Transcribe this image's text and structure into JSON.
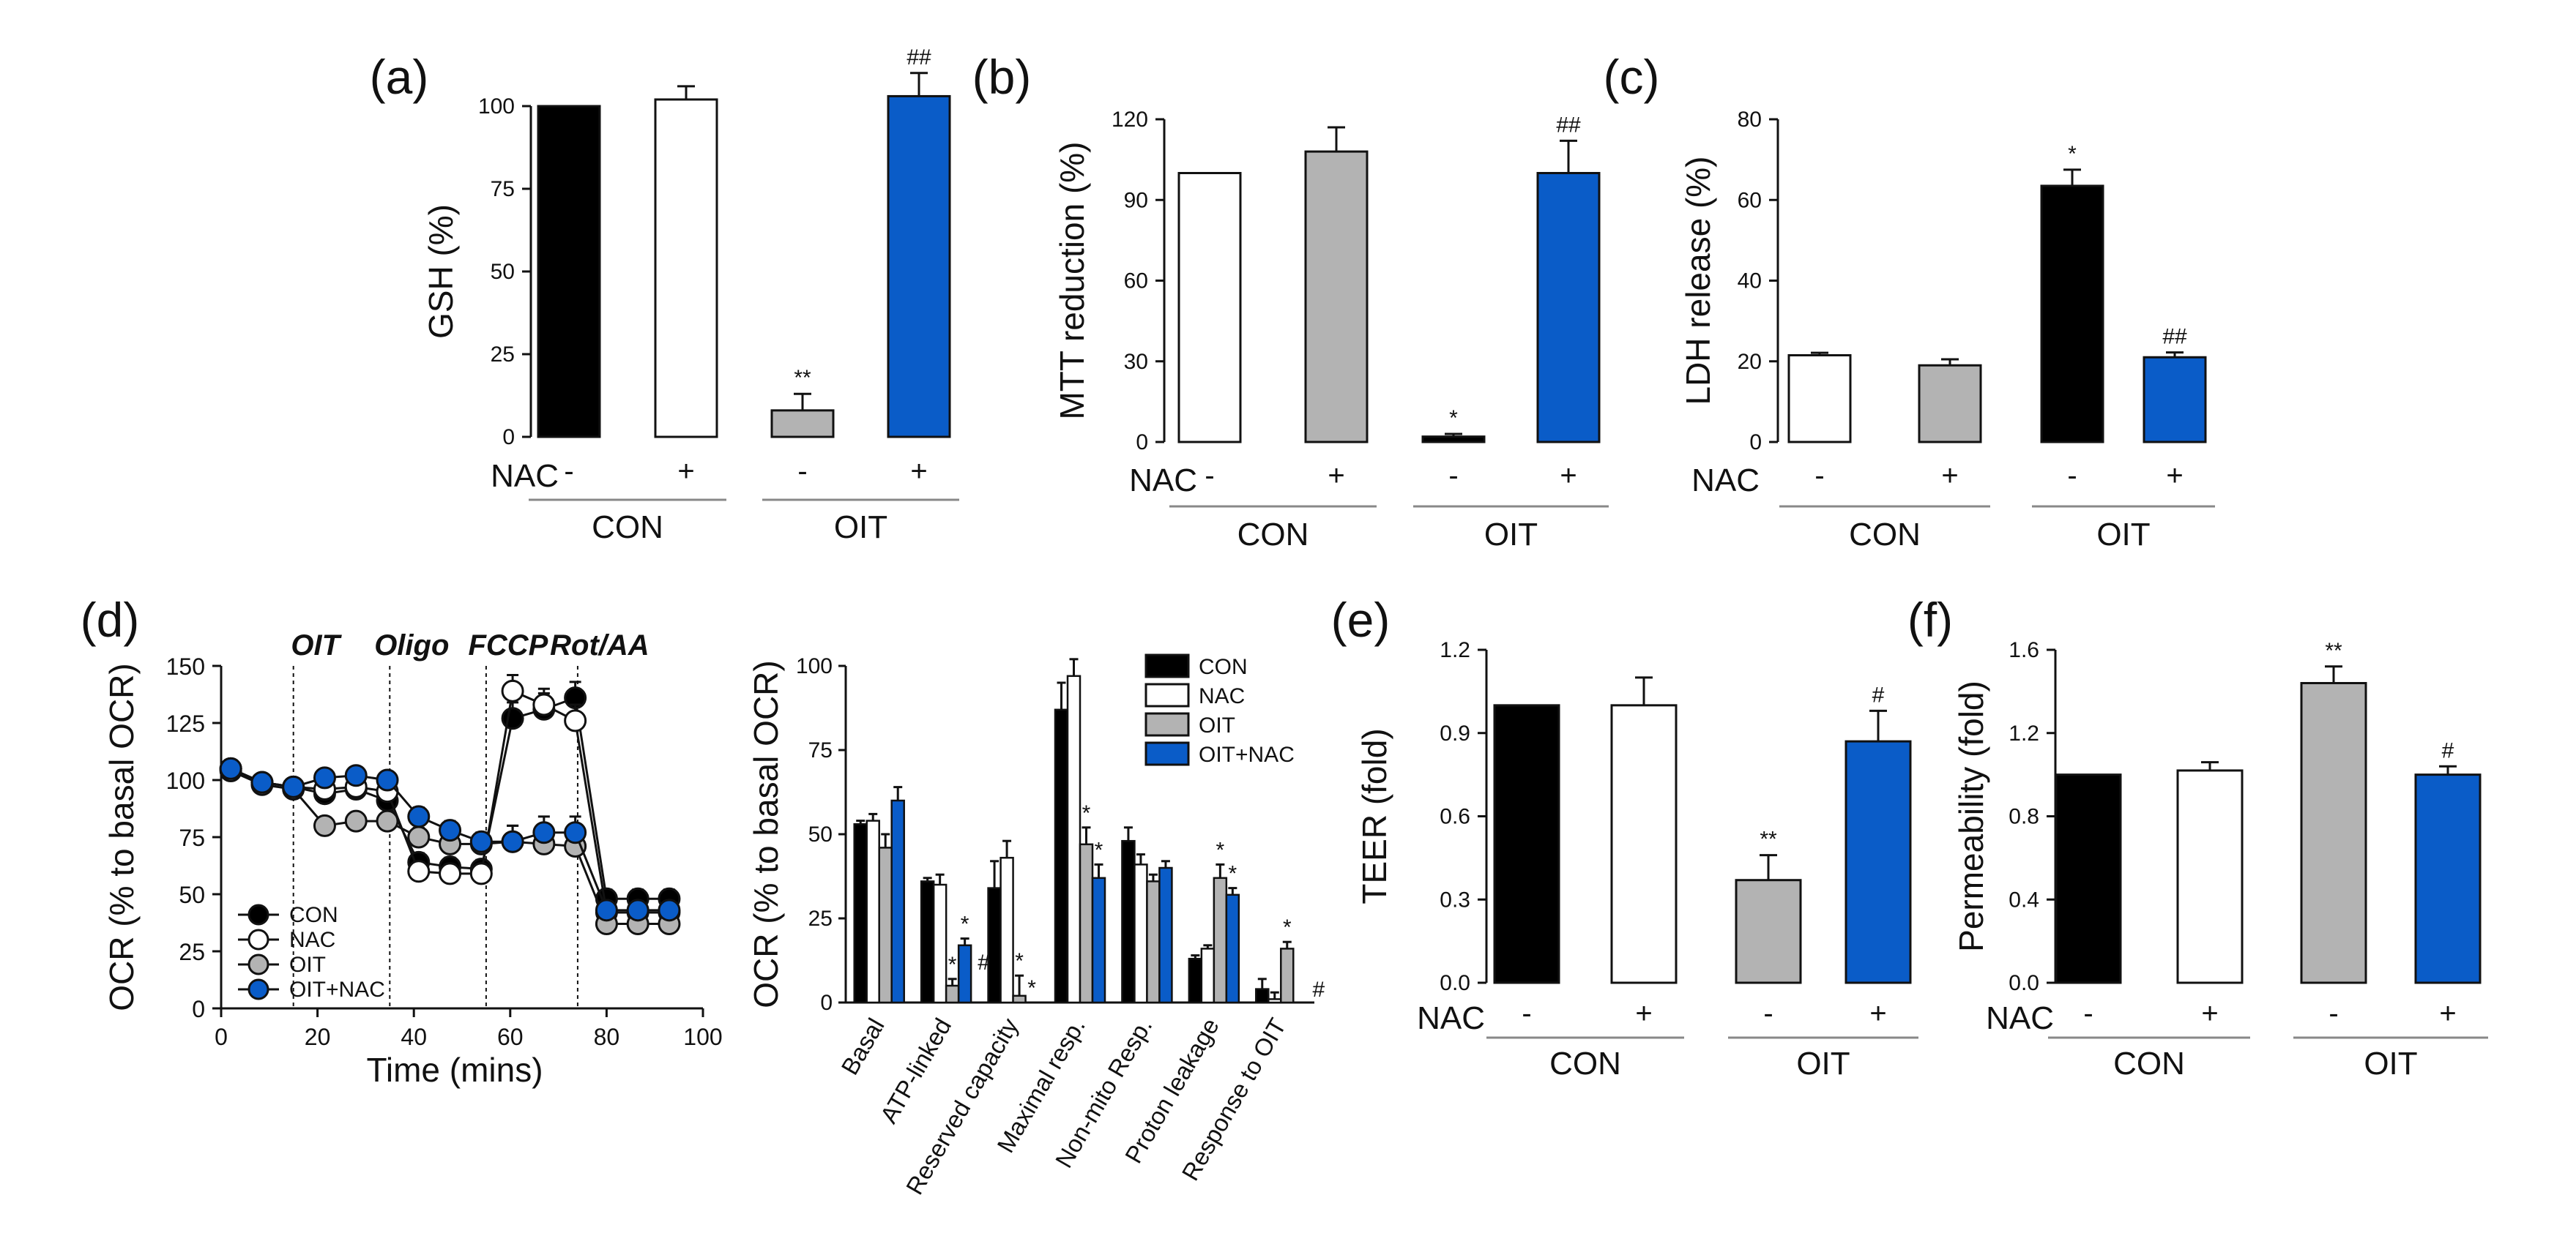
{
  "colors": {
    "black": "#000000",
    "white": "#ffffff",
    "gray": "#b3b3b3",
    "blue": "#0a5cc8",
    "axis": "#111111",
    "group_line": "#888888"
  },
  "chart_data": [
    {
      "panel": "(a)",
      "type": "bar",
      "ylabel": "GSH (%)",
      "ylim": [
        0,
        100
      ],
      "yticks": [
        "0",
        "25",
        "50",
        "75",
        "100"
      ],
      "nac_label": "NAC",
      "nac_signs": [
        "-",
        "+",
        "-",
        "+"
      ],
      "groups": [
        "CON",
        "OIT"
      ],
      "values": [
        100,
        102,
        8,
        103
      ],
      "errors": [
        0,
        4,
        5,
        7
      ],
      "bar_colors": [
        "#000000",
        "#ffffff",
        "#b3b3b3",
        "#0a5cc8"
      ],
      "annotations": [
        "",
        "",
        "**",
        "##"
      ]
    },
    {
      "panel": "(b)",
      "type": "bar",
      "ylabel": "MTT reduction (%)",
      "ylim": [
        0,
        120
      ],
      "yticks": [
        "0",
        "30",
        "60",
        "90",
        "120"
      ],
      "nac_label": "NAC",
      "nac_signs": [
        "-",
        "+",
        "-",
        "+"
      ],
      "groups": [
        "CON",
        "OIT"
      ],
      "values": [
        100,
        108,
        2,
        100
      ],
      "errors": [
        0,
        9,
        1,
        12
      ],
      "bar_colors": [
        "#ffffff",
        "#b3b3b3",
        "#000000",
        "#0a5cc8"
      ],
      "annotations": [
        "",
        "",
        "*",
        "##"
      ]
    },
    {
      "panel": "(c)",
      "type": "bar",
      "ylabel": "LDH release (%)",
      "ylim": [
        0,
        80
      ],
      "yticks": [
        "0",
        "20",
        "40",
        "60",
        "80"
      ],
      "nac_label": "NAC",
      "nac_signs": [
        "-",
        "+",
        "-",
        "+"
      ],
      "groups": [
        "CON",
        "OIT"
      ],
      "values": [
        21.5,
        19,
        63.5,
        21
      ],
      "errors": [
        0.6,
        1.5,
        4,
        1.2
      ],
      "bar_colors": [
        "#ffffff",
        "#b3b3b3",
        "#000000",
        "#0a5cc8"
      ],
      "annotations": [
        "",
        "",
        "*",
        "##"
      ]
    },
    {
      "panel": "(d)",
      "type": "line",
      "xlabel": "Time (mins)",
      "ylabel": "OCR (% to basal OCR)",
      "xlim": [
        0,
        100
      ],
      "ylim": [
        0,
        150
      ],
      "xticks": [
        "0",
        "20",
        "40",
        "60",
        "80",
        "100"
      ],
      "yticks": [
        "0",
        "25",
        "50",
        "75",
        "100",
        "125",
        "150"
      ],
      "events": [
        {
          "label": "OIT",
          "x": 15
        },
        {
          "label": "Oligo",
          "x": 35
        },
        {
          "label": "FCCP",
          "x": 55
        },
        {
          "label": "Rot/AA",
          "x": 74
        }
      ],
      "x": [
        2,
        8.5,
        15,
        21.5,
        28,
        34.5,
        41,
        47.5,
        54,
        60.5,
        67,
        73.5,
        80,
        86.5,
        93
      ],
      "series": [
        {
          "name": "CON",
          "color": "#000000",
          "values": [
            105,
            99,
            97,
            94,
            96,
            91,
            64,
            62,
            61,
            127,
            131,
            136,
            48,
            48,
            48
          ]
        },
        {
          "name": "NAC",
          "color": "#ffffff",
          "values": [
            105,
            99,
            97,
            96,
            97,
            95,
            60,
            59,
            59,
            139,
            133,
            126,
            42,
            42,
            42
          ]
        },
        {
          "name": "OIT",
          "color": "#b3b3b3",
          "values": [
            104,
            98,
            96,
            80,
            82,
            82,
            75,
            72,
            72,
            73,
            72,
            71,
            37,
            37,
            37
          ]
        },
        {
          "name": "OIT+NAC",
          "color": "#0a5cc8",
          "values": [
            105,
            99,
            97,
            101,
            102,
            100,
            84,
            78,
            73,
            73,
            77,
            77,
            43,
            43,
            43
          ]
        }
      ],
      "errors": [
        2,
        2,
        2,
        3,
        3,
        3,
        4,
        4,
        4,
        7,
        7,
        7,
        4,
        4,
        4
      ]
    },
    {
      "panel": "(d)",
      "type": "bar",
      "ylabel": "OCR (% to basal OCR)",
      "ylim": [
        0,
        100
      ],
      "yticks": [
        "0",
        "25",
        "50",
        "75",
        "100"
      ],
      "categories": [
        "Basal",
        "ATP-linked",
        "Reserved capacity",
        "Maximal resp.",
        "Non-mito Resp.",
        "Proton leakage",
        "Response to OIT"
      ],
      "series": [
        {
          "name": "CON",
          "color": "#000000",
          "values": [
            53,
            36,
            34,
            87,
            48,
            13,
            4
          ],
          "errors": [
            1,
            1,
            8,
            8,
            4,
            1,
            3
          ]
        },
        {
          "name": "NAC",
          "color": "#ffffff",
          "values": [
            54,
            35,
            43,
            97,
            41,
            16,
            1
          ],
          "errors": [
            2,
            3,
            5,
            5,
            3,
            1,
            2
          ]
        },
        {
          "name": "OIT",
          "color": "#b3b3b3",
          "values": [
            46,
            5,
            2,
            47,
            36,
            37,
            16
          ],
          "errors": [
            4,
            2,
            6,
            5,
            2,
            4,
            2
          ]
        },
        {
          "name": "OIT+NAC",
          "color": "#0a5cc8",
          "values": [
            60,
            17,
            0,
            37,
            40,
            32,
            0
          ],
          "errors": [
            4,
            2,
            0,
            4,
            2,
            2,
            0
          ]
        }
      ],
      "annotations": [
        {
          "category": 1,
          "series": 2,
          "text": "*"
        },
        {
          "category": 1,
          "series": 3,
          "text": "*"
        },
        {
          "category": 1,
          "series": 3,
          "text": "#"
        },
        {
          "category": 2,
          "series": 2,
          "text": "*"
        },
        {
          "category": 2,
          "series": 3,
          "text": "*"
        },
        {
          "category": 3,
          "series": 2,
          "text": "*"
        },
        {
          "category": 3,
          "series": 3,
          "text": "*"
        },
        {
          "category": 5,
          "series": 2,
          "text": "*"
        },
        {
          "category": 5,
          "series": 3,
          "text": "*"
        },
        {
          "category": 6,
          "series": 2,
          "text": "*"
        },
        {
          "category": 6,
          "series": 3,
          "text": "#"
        }
      ]
    },
    {
      "panel": "(e)",
      "type": "bar",
      "ylabel": "TEER (fold)",
      "ylim": [
        0,
        1.2
      ],
      "yticks": [
        "0.0",
        "0.3",
        "0.6",
        "0.9",
        "1.2"
      ],
      "nac_label": "NAC",
      "nac_signs": [
        "-",
        "+",
        "-",
        "+"
      ],
      "groups": [
        "CON",
        "OIT"
      ],
      "values": [
        1.0,
        1.0,
        0.37,
        0.87
      ],
      "errors": [
        0,
        0.1,
        0.09,
        0.11
      ],
      "bar_colors": [
        "#000000",
        "#ffffff",
        "#b3b3b3",
        "#0a5cc8"
      ],
      "annotations": [
        "",
        "",
        "**",
        "#"
      ]
    },
    {
      "panel": "(f)",
      "type": "bar",
      "ylabel": "Permeability (fold)",
      "ylim": [
        0,
        1.6
      ],
      "yticks": [
        "0.0",
        "0.4",
        "0.8",
        "1.2",
        "1.6"
      ],
      "nac_label": "NAC",
      "nac_signs": [
        "-",
        "+",
        "-",
        "+"
      ],
      "groups": [
        "CON",
        "OIT"
      ],
      "values": [
        1.0,
        1.02,
        1.44,
        1.0
      ],
      "errors": [
        0,
        0.04,
        0.08,
        0.04
      ],
      "bar_colors": [
        "#000000",
        "#ffffff",
        "#b3b3b3",
        "#0a5cc8"
      ],
      "annotations": [
        "",
        "",
        "**",
        "#"
      ]
    }
  ]
}
